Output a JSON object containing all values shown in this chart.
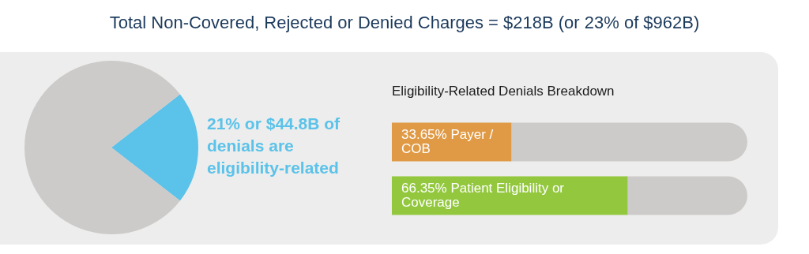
{
  "chart_data": [
    {
      "type": "pie",
      "title": "Total Non-Covered, Rejected or Denied Charges = $218B (or 23% of $962B)",
      "categories": [
        null,
        null
      ],
      "values": [
        21,
        79
      ],
      "colors": [
        "#5bc2ea",
        "#cdcbca"
      ],
      "annotations": [
        "21% or $44.8B of denials are eligibility-related"
      ]
    },
    {
      "type": "bar",
      "title": "Eligibility-Related Denials Breakdown",
      "orientation": "horizontal",
      "stacked": true,
      "categories": [
        null,
        null
      ],
      "xlim": [
        0,
        100
      ],
      "tick_labels": false,
      "series": [
        {
          "colors": [
            "#e09a45",
            "#93c83e"
          ],
          "values": [
            33.65,
            66.35
          ],
          "value_labels": [
            "33.65% Payer / COB",
            "66.35% Patient Eligibility or Coverage"
          ]
        },
        {
          "color": "#cdcbca",
          "values": [
            66.35,
            33.65
          ]
        }
      ]
    }
  ]
}
